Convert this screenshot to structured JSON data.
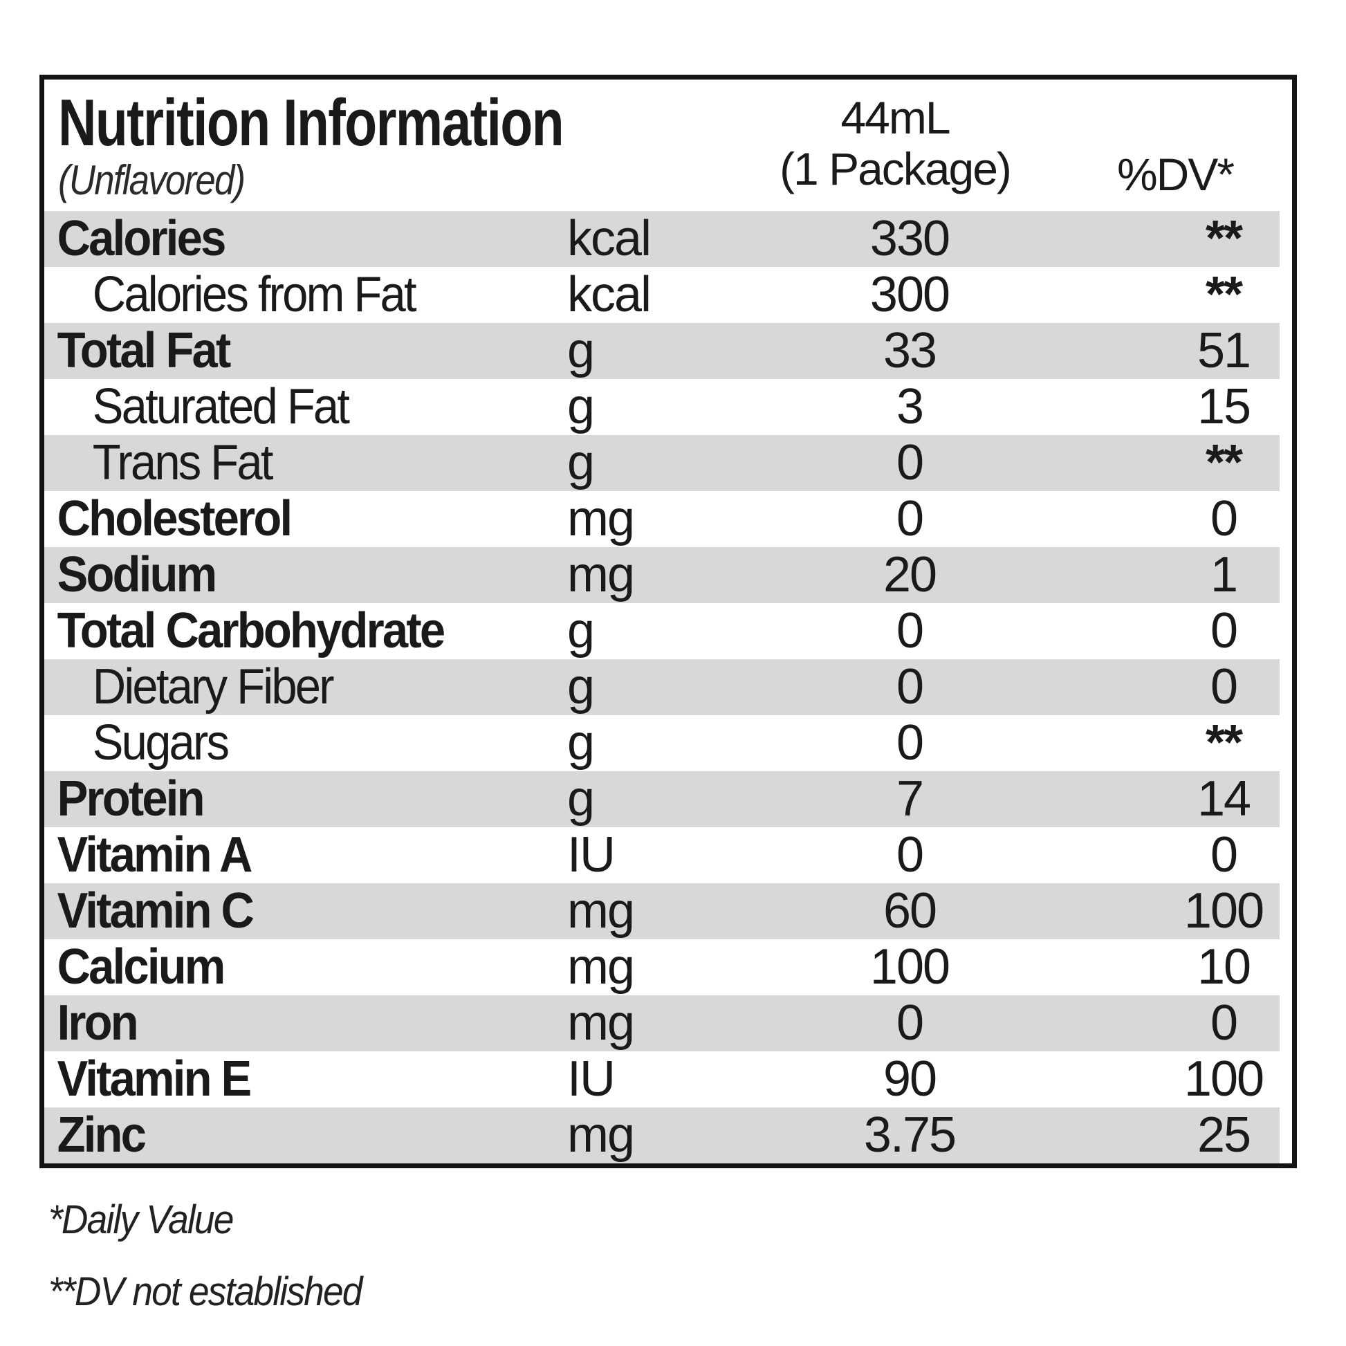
{
  "table": {
    "title": "Nutrition Information",
    "subtitle": "(Unflavored)",
    "serving_header_line1": "44mL",
    "serving_header_line2": "(1 Package)",
    "dv_header": "%DV*",
    "rows": [
      {
        "label": "Calories",
        "unit": "kcal",
        "amount": "330",
        "dv": "**",
        "bold": true,
        "indent": false,
        "shaded": true
      },
      {
        "label": "Calories from Fat",
        "unit": "kcal",
        "amount": "300",
        "dv": "**",
        "bold": false,
        "indent": true,
        "shaded": false
      },
      {
        "label": "Total Fat",
        "unit": "g",
        "amount": "33",
        "dv": "51",
        "bold": true,
        "indent": false,
        "shaded": true
      },
      {
        "label": "Saturated Fat",
        "unit": "g",
        "amount": "3",
        "dv": "15",
        "bold": false,
        "indent": true,
        "shaded": false
      },
      {
        "label": "Trans Fat",
        "unit": "g",
        "amount": "0",
        "dv": "**",
        "bold": false,
        "indent": true,
        "shaded": true
      },
      {
        "label": "Cholesterol",
        "unit": "mg",
        "amount": "0",
        "dv": "0",
        "bold": true,
        "indent": false,
        "shaded": false
      },
      {
        "label": "Sodium",
        "unit": "mg",
        "amount": "20",
        "dv": "1",
        "bold": true,
        "indent": false,
        "shaded": true
      },
      {
        "label": "Total Carbohydrate",
        "unit": "g",
        "amount": "0",
        "dv": "0",
        "bold": true,
        "indent": false,
        "shaded": false
      },
      {
        "label": "Dietary Fiber",
        "unit": "g",
        "amount": "0",
        "dv": "0",
        "bold": false,
        "indent": true,
        "shaded": true
      },
      {
        "label": "Sugars",
        "unit": "g",
        "amount": "0",
        "dv": "**",
        "bold": false,
        "indent": true,
        "shaded": false
      },
      {
        "label": "Protein",
        "unit": "g",
        "amount": "7",
        "dv": "14",
        "bold": true,
        "indent": false,
        "shaded": true
      },
      {
        "label": "Vitamin A",
        "unit": "IU",
        "amount": "0",
        "dv": "0",
        "bold": true,
        "indent": false,
        "shaded": false
      },
      {
        "label": "Vitamin C",
        "unit": "mg",
        "amount": "60",
        "dv": "100",
        "bold": true,
        "indent": false,
        "shaded": true
      },
      {
        "label": "Calcium",
        "unit": "mg",
        "amount": "100",
        "dv": "10",
        "bold": true,
        "indent": false,
        "shaded": false
      },
      {
        "label": "Iron",
        "unit": "mg",
        "amount": "0",
        "dv": "0",
        "bold": true,
        "indent": false,
        "shaded": true
      },
      {
        "label": "Vitamin E",
        "unit": "IU",
        "amount": "90",
        "dv": "100",
        "bold": true,
        "indent": false,
        "shaded": false
      },
      {
        "label": "Zinc",
        "unit": "mg",
        "amount": "3.75",
        "dv": "25",
        "bold": true,
        "indent": false,
        "shaded": true
      }
    ],
    "footnotes": [
      "*Daily Value",
      "**DV not established"
    ]
  },
  "colors": {
    "shaded_row": "#d8d8d8",
    "border": "#141414",
    "text": "#1a1a1a",
    "background": "#ffffff"
  }
}
